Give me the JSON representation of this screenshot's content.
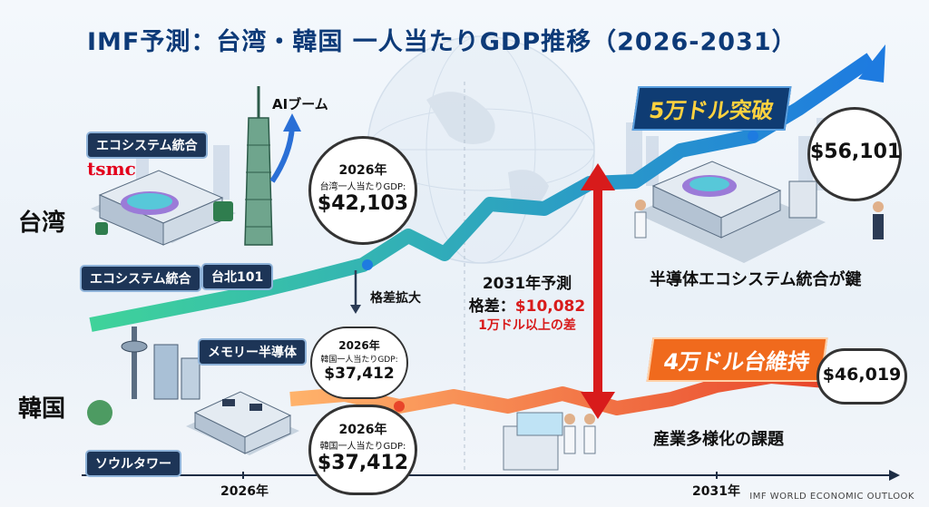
{
  "title": "IMF予測：台湾・韓国 一人当たりGDP推移（2026-2031）",
  "row_labels": {
    "taiwan": "台湾",
    "korea": "韓国"
  },
  "taiwan": {
    "ai_boom": "AIブーム",
    "tsmc_logo": "tsmc",
    "tag_ecosystem_top": "エコシステム統合",
    "tag_ecosystem_bottom": "エコシステム統合",
    "tag_taipei101": "台北101",
    "bubble_2026": {
      "year": "2026年",
      "label": "台湾一人当たりGDP:",
      "value": "$42,103"
    },
    "banner_2031": "5万ドル突破",
    "bubble_2031": {
      "value": "$56,101"
    },
    "caption": "半導体エコシステム統合が鍵"
  },
  "korea": {
    "tag_memory": "メモリー半導体",
    "tag_tower": "ソウルタワー",
    "bubble_2026a": {
      "year": "2026年",
      "label": "韓国一人当たりGDP:",
      "value": "$37,412"
    },
    "bubble_2026b": {
      "year": "2026年",
      "label": "韓国一人当たりGDP:",
      "value": "$37,412"
    },
    "banner_2031": "4万ドル台維持",
    "bubble_2031": {
      "value": "$46,019"
    },
    "caption": "産業多様化の課題"
  },
  "gap": {
    "widen": "格差拡大",
    "line1": "2031年予測",
    "line2_prefix": "格差：",
    "line2_value": "$10,082",
    "line3": "1万ドル以上の差"
  },
  "x_axis": {
    "start": "2026年",
    "end": "2031年"
  },
  "footer": "IMF WORLD ECONOMIC OUTLOOK",
  "colors": {
    "taiwan_line_start": "#3fd39a",
    "taiwan_line_end": "#1e7be0",
    "korea_line_start": "#ffb36b",
    "korea_line_end": "#e8452a",
    "gap_arrow": "#d81b1b",
    "accent": "#0d3a78"
  },
  "chart_data": {
    "type": "line",
    "title": "IMF予測：台湾・韓国 一人当たりGDP推移（2026-2031）",
    "x": [
      "2026年",
      "2031年"
    ],
    "series": [
      {
        "name": "台湾",
        "values": [
          42103,
          56101
        ]
      },
      {
        "name": "韓国",
        "values": [
          37412,
          46019
        ]
      }
    ],
    "xlabel": "",
    "ylabel": ""
  }
}
